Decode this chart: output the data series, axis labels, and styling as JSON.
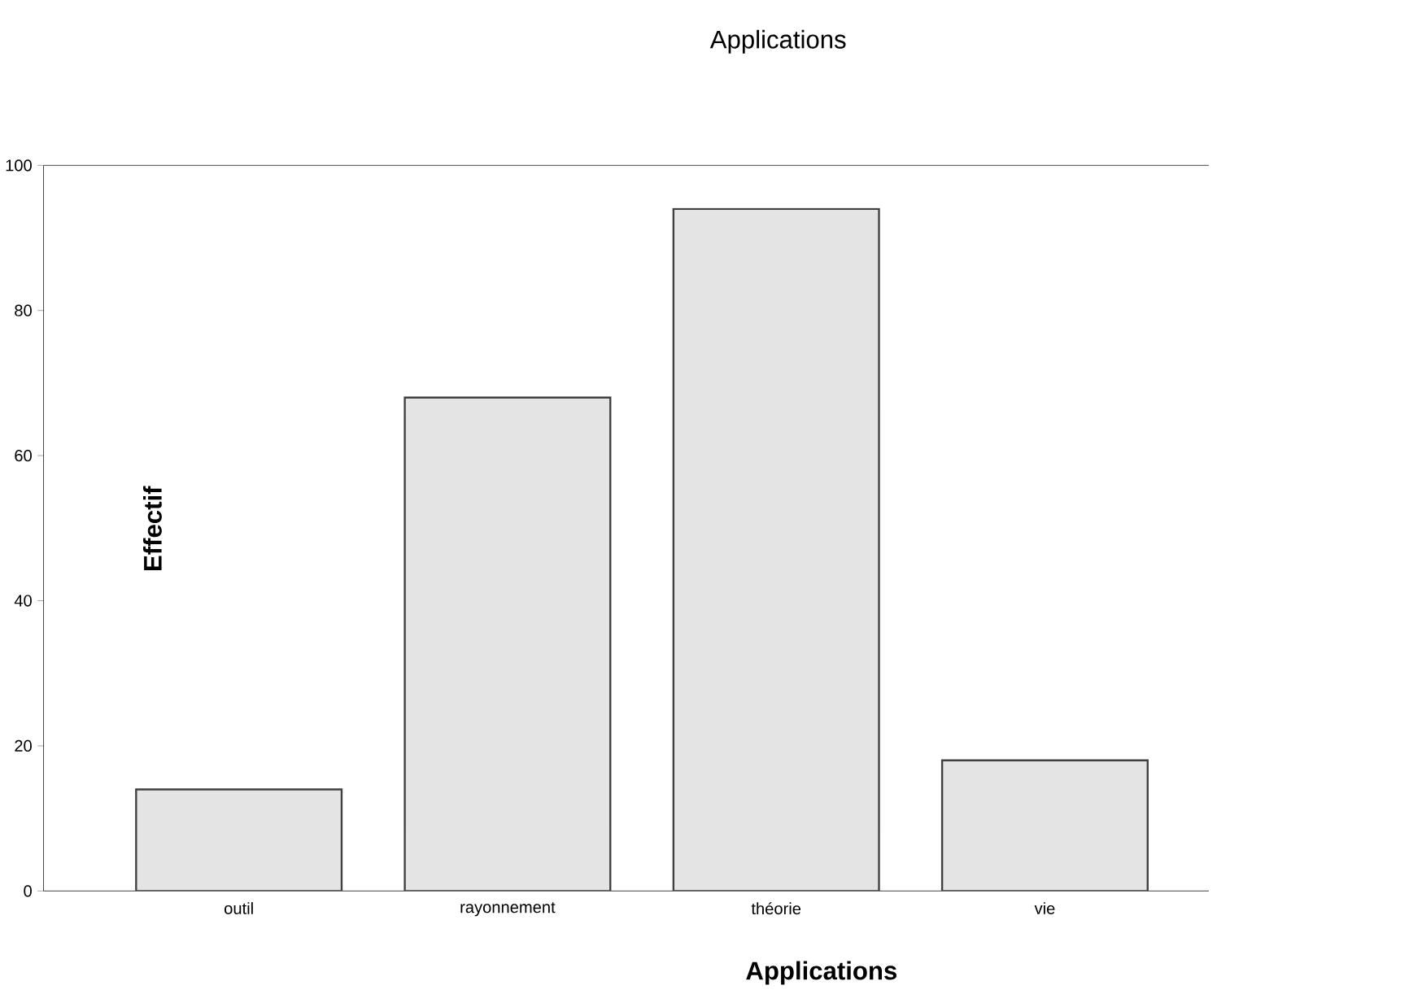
{
  "chart_data": {
    "type": "bar",
    "title": "Applications",
    "xlabel": "Applications",
    "ylabel": "Effectif",
    "categories": [
      "outil",
      "rayonnement",
      "théorie",
      "vie"
    ],
    "values": [
      14,
      68,
      94,
      18
    ],
    "color": "#e4e4e4",
    "ylim": [
      0,
      100
    ],
    "yticks": [
      0,
      20,
      40,
      60,
      80,
      100
    ]
  }
}
